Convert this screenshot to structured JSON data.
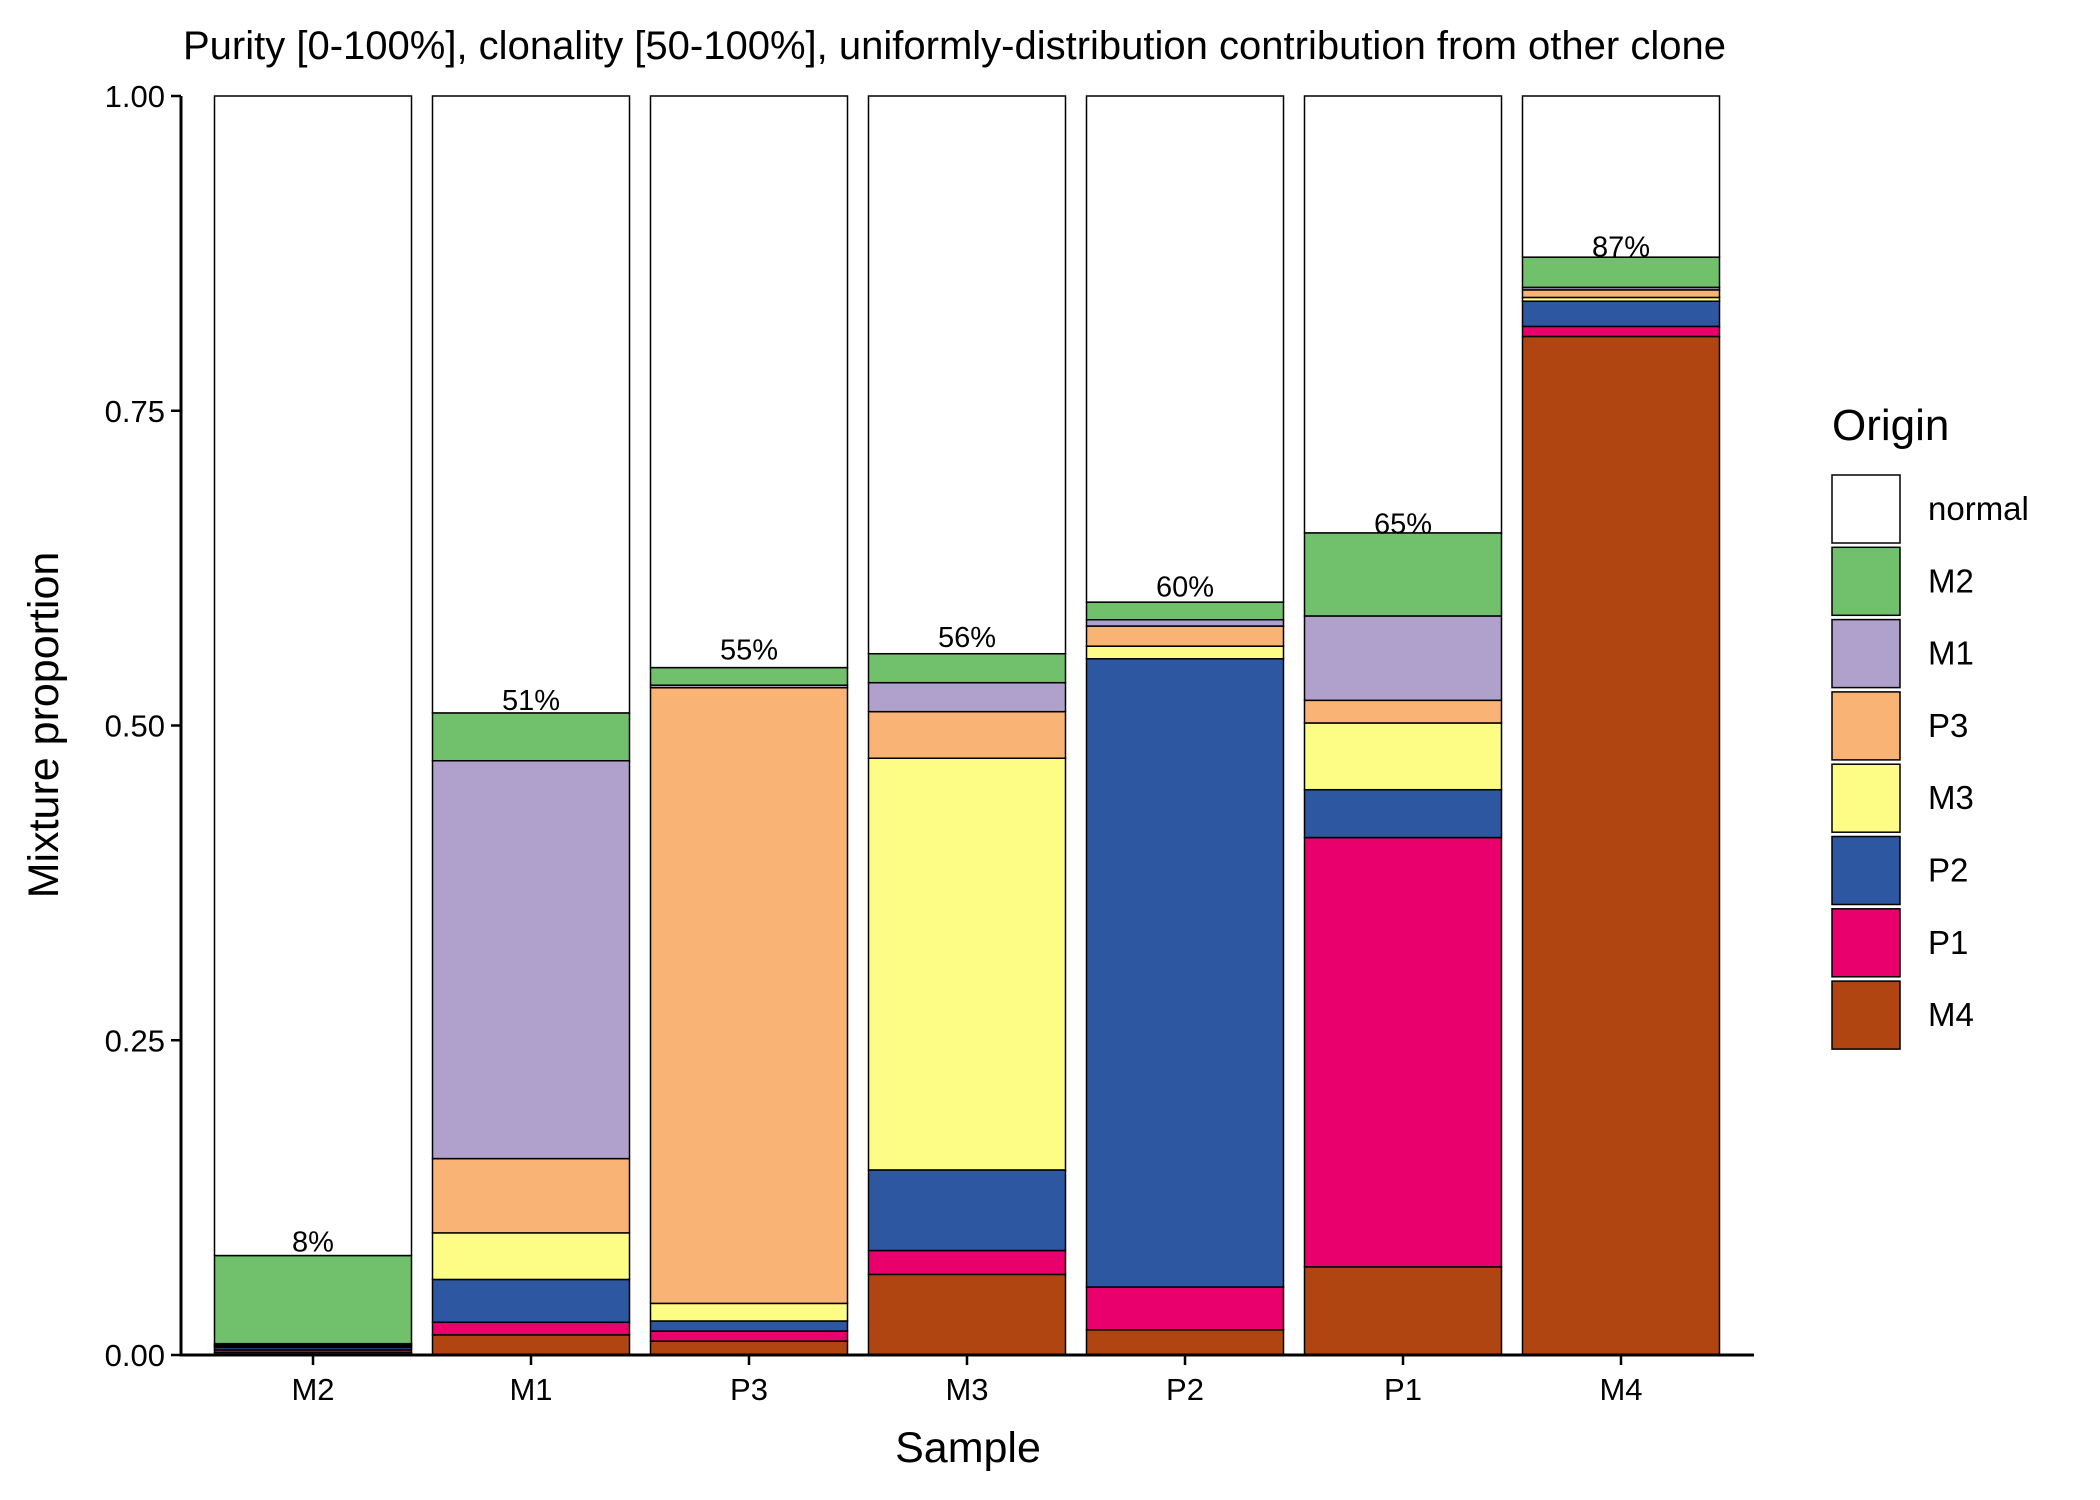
{
  "chart_data": {
    "type": "stacked_bar",
    "title": "Purity [0-100%], clonality [50-100%], uniformly-distribution contribution from other clone",
    "x_label": "Sample",
    "y_label": "Mixture proportion",
    "legend_title": "Origin",
    "legend_position": "right",
    "categories": [
      "M2",
      "M1",
      "P3",
      "M3",
      "P2",
      "P1",
      "M4"
    ],
    "series": [
      {
        "name": "normal",
        "color": "#ffffff",
        "values": [
          0.921,
          0.49,
          0.454,
          0.443,
          0.402,
          0.347,
          0.128
        ]
      },
      {
        "name": "M2",
        "color": "#71c16c",
        "values": [
          0.07,
          0.038,
          0.014,
          0.023,
          0.014,
          0.066,
          0.024
        ]
      },
      {
        "name": "M1",
        "color": "#afa0cc",
        "values": [
          0.001,
          0.316,
          0.002,
          0.023,
          0.005,
          0.067,
          0.002
        ]
      },
      {
        "name": "P3",
        "color": "#f9b475",
        "values": [
          0.001,
          0.059,
          0.489,
          0.037,
          0.016,
          0.018,
          0.006
        ]
      },
      {
        "name": "M3",
        "color": "#fdfd85",
        "values": [
          0.001,
          0.037,
          0.014,
          0.327,
          0.01,
          0.053,
          0.003
        ]
      },
      {
        "name": "P2",
        "color": "#2d57a1",
        "values": [
          0.002,
          0.034,
          0.008,
          0.064,
          0.499,
          0.038,
          0.02
        ]
      },
      {
        "name": "P1",
        "color": "#e9006d",
        "values": [
          0.002,
          0.01,
          0.008,
          0.019,
          0.034,
          0.341,
          0.008
        ]
      },
      {
        "name": "M4",
        "color": "#b04511",
        "values": [
          0.002,
          0.016,
          0.011,
          0.064,
          0.02,
          0.07,
          0.809
        ]
      }
    ],
    "purity": {
      "values": [
        0.08,
        0.51,
        0.55,
        0.56,
        0.6,
        0.65,
        0.87
      ],
      "value_labels": [
        "8%",
        "51%",
        "55%",
        "56%",
        "60%",
        "65%",
        "87%"
      ]
    },
    "ylim": [
      0,
      1
    ],
    "yticks": [
      {
        "value": 0,
        "label": "0.00"
      },
      {
        "value": 0.25,
        "label": "0.25"
      },
      {
        "value": 0.5,
        "label": "0.50"
      },
      {
        "value": 0.75,
        "label": "0.75"
      },
      {
        "value": 1,
        "label": "1.00"
      }
    ],
    "grid": false
  }
}
